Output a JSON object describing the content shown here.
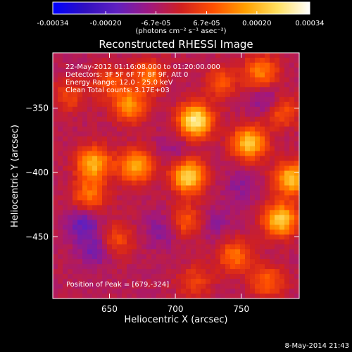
{
  "chart_data": {
    "type": "heatmap",
    "title": "Reconstructed RHESSI Image",
    "xlabel": "Heliocentric X (arcsec)",
    "ylabel": "Heliocentric Y (arcsec)",
    "xlim": [
      607,
      794
    ],
    "ylim": [
      -498,
      -307
    ],
    "x_ticks": [
      650,
      700,
      750
    ],
    "y_ticks": [
      -350,
      -400,
      -450
    ],
    "colorbar": {
      "ticks": [
        "-0.00034",
        "-0.00020",
        "-6.7e-05",
        "6.7e-05",
        "0.00020",
        "0.00034"
      ],
      "tick_values": [
        -0.00034,
        -0.0002,
        -6.7e-05,
        6.7e-05,
        0.0002,
        0.00034
      ],
      "range": [
        -0.00034,
        0.00034
      ],
      "units_label": "(photons cm⁻² s⁻¹ asec⁻²)",
      "colormap": [
        "#0000ff",
        "#3010c0",
        "#6020c0",
        "#a01880",
        "#d02020",
        "#ff5000",
        "#ffa000",
        "#ffe060",
        "#ffffff"
      ]
    },
    "annotations": [
      "22-May-2012 01:16:08.000 to 01:20:00.000",
      "Detectors: 3F 5F 6F 7F 8F 9F, Att 0",
      "Energy Range: 12.0 - 25.0 keV",
      "Clean     Total counts: 3.17E+03"
    ],
    "peak_label": "Position of Peak = [679,-324]",
    "sources": [
      {
        "x": 715,
        "y": -360,
        "intensity": 0.00034
      },
      {
        "x": 710,
        "y": -403,
        "intensity": 0.0003
      },
      {
        "x": 756,
        "y": -377,
        "intensity": 0.00027
      },
      {
        "x": 638,
        "y": -393,
        "intensity": 0.00025
      },
      {
        "x": 780,
        "y": -437,
        "intensity": 0.00028
      },
      {
        "x": 788,
        "y": -405,
        "intensity": 0.00026
      },
      {
        "x": 670,
        "y": -395,
        "intensity": 0.00024
      },
      {
        "x": 665,
        "y": -348,
        "intensity": 0.0002
      },
      {
        "x": 680,
        "y": -325,
        "intensity": 0.00016
      },
      {
        "x": 780,
        "y": -352,
        "intensity": 0.00015
      },
      {
        "x": 765,
        "y": -322,
        "intensity": 0.00018
      },
      {
        "x": 635,
        "y": -418,
        "intensity": 0.00016
      },
      {
        "x": 745,
        "y": -465,
        "intensity": 0.00016
      },
      {
        "x": 708,
        "y": -438,
        "intensity": 0.00014
      },
      {
        "x": 655,
        "y": -452,
        "intensity": 0.00012
      },
      {
        "x": 770,
        "y": -485,
        "intensity": 0.00014
      },
      {
        "x": 715,
        "y": -485,
        "intensity": 0.0001
      },
      {
        "x": 620,
        "y": -340,
        "intensity": 0.0001
      },
      {
        "x": 735,
        "y": -330,
        "intensity": 0.00012
      },
      {
        "x": 650,
        "y": -330,
        "intensity": 0.00012
      }
    ],
    "sinks": [
      {
        "x": 770,
        "y": -345,
        "intensity": -0.0001
      },
      {
        "x": 630,
        "y": -440,
        "intensity": -0.00012
      },
      {
        "x": 640,
        "y": -460,
        "intensity": -0.0001
      },
      {
        "x": 690,
        "y": -445,
        "intensity": -8e-05
      },
      {
        "x": 750,
        "y": -410,
        "intensity": -6e-05
      },
      {
        "x": 700,
        "y": -382,
        "intensity": -5e-05
      },
      {
        "x": 730,
        "y": -440,
        "intensity": -6e-05
      }
    ]
  },
  "footer": {
    "timestamp": "8-May-2014 21:43"
  }
}
